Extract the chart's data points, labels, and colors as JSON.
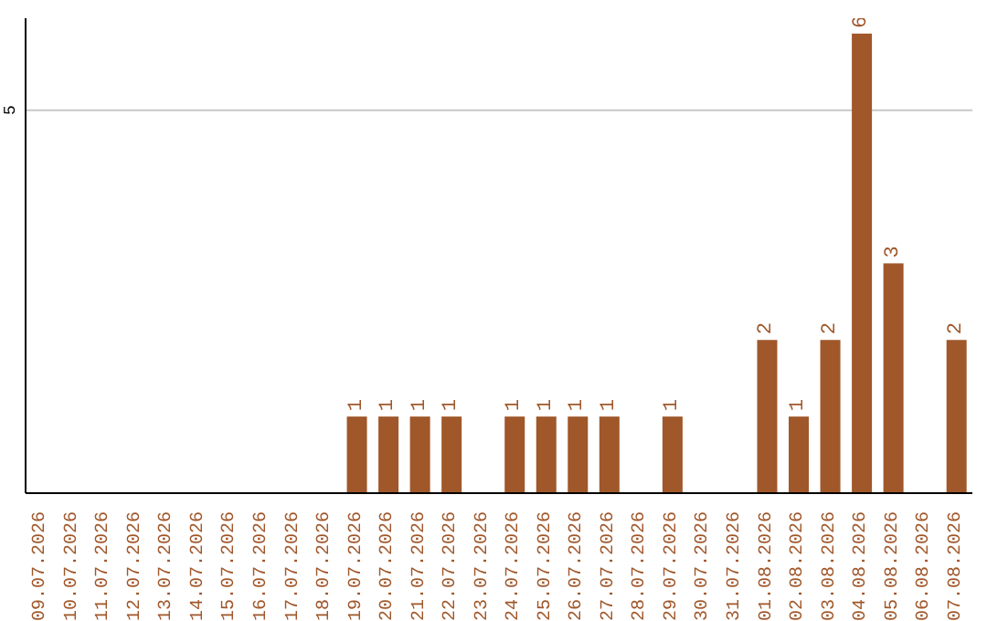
{
  "chart_data": {
    "type": "bar",
    "categories": [
      "09.07.2026",
      "10.07.2026",
      "11.07.2026",
      "12.07.2026",
      "13.07.2026",
      "14.07.2026",
      "15.07.2026",
      "16.07.2026",
      "17.07.2026",
      "18.07.2026",
      "19.07.2026",
      "20.07.2026",
      "21.07.2026",
      "22.07.2026",
      "23.07.2026",
      "24.07.2026",
      "25.07.2026",
      "26.07.2026",
      "27.07.2026",
      "28.07.2026",
      "29.07.2026",
      "30.07.2026",
      "31.07.2026",
      "01.08.2026",
      "02.08.2026",
      "03.08.2026",
      "04.08.2026",
      "05.08.2026",
      "06.08.2026",
      "07.08.2026"
    ],
    "values": [
      0,
      0,
      0,
      0,
      0,
      0,
      0,
      0,
      0,
      0,
      1,
      1,
      1,
      1,
      0,
      1,
      1,
      1,
      1,
      0,
      1,
      0,
      0,
      2,
      1,
      2,
      6,
      3,
      0,
      2
    ],
    "value_labels": [
      null,
      null,
      null,
      null,
      null,
      null,
      null,
      null,
      null,
      null,
      "1",
      "1",
      "1",
      "1",
      null,
      "1",
      "1",
      "1",
      "1",
      null,
      "1",
      null,
      null,
      "2",
      "1",
      "2",
      "6",
      "3",
      null,
      "2"
    ],
    "color": "#a0572a",
    "ylim": [
      0,
      6.2
    ],
    "yticks": [
      {
        "value": 0,
        "label": null
      },
      5
    ],
    "grid": "y"
  }
}
